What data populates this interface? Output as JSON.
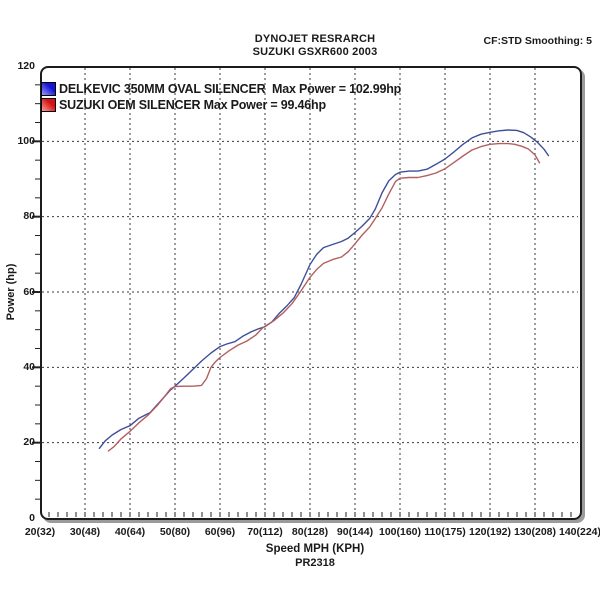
{
  "header": {
    "line1": "DYNOJET RESRARCH",
    "line2": "SUZUKI GSXR600 2003",
    "smoothing": "CF:STD Smoothing: 5"
  },
  "legend": [
    {
      "label": "DELKEVIC 350MM OVAL SILENCER  Max Power = 102.99hp",
      "swatch_color": "#1414d2",
      "swatch_light": "#9a9aff"
    },
    {
      "label": "SUZUKI OEM SILENCER Max Power = 99.46hp",
      "swatch_color": "#d41414",
      "swatch_light": "#ff9a9a"
    }
  ],
  "y_axis": {
    "label": "Power (hp)"
  },
  "x_axis": {
    "label": "Speed MPH (KPH)"
  },
  "footer": {
    "run_id": "PR2318"
  },
  "chart_data": {
    "type": "line",
    "title": "DYNOJET RESRARCH - SUZUKI GSXR600 2003",
    "xlabel": "Speed MPH (KPH)",
    "ylabel": "Power (hp)",
    "xlim": [
      20,
      140
    ],
    "ylim": [
      0,
      120
    ],
    "grid": "dashed",
    "legend_position": "top-left-inside",
    "x_ticks": [
      {
        "mph": 20,
        "label": "20(32)"
      },
      {
        "mph": 30,
        "label": "30(48)"
      },
      {
        "mph": 40,
        "label": "40(64)"
      },
      {
        "mph": 50,
        "label": "50(80)"
      },
      {
        "mph": 60,
        "label": "60(96)"
      },
      {
        "mph": 70,
        "label": "70(112)"
      },
      {
        "mph": 80,
        "label": "80(128)"
      },
      {
        "mph": 90,
        "label": "90(144)"
      },
      {
        "mph": 100,
        "label": "100(160)"
      },
      {
        "mph": 110,
        "label": "110(175)"
      },
      {
        "mph": 120,
        "label": "120(192)"
      },
      {
        "mph": 130,
        "label": "130(208)"
      },
      {
        "mph": 140,
        "label": "140(224)"
      }
    ],
    "y_ticks": [
      0,
      20,
      40,
      60,
      80,
      100,
      120
    ],
    "series": [
      {
        "name": "DELKEVIC 350MM OVAL SILENCER",
        "max_power_hp": 102.99,
        "color": "#3f4e9a",
        "points": [
          [
            33.2,
            18.5
          ],
          [
            34.5,
            20.5
          ],
          [
            36,
            22
          ],
          [
            38,
            23.5
          ],
          [
            40,
            24.5
          ],
          [
            42,
            26.5
          ],
          [
            44.5,
            28
          ],
          [
            46,
            30
          ],
          [
            47.5,
            32
          ],
          [
            49,
            34
          ],
          [
            50,
            35
          ],
          [
            52,
            37.2
          ],
          [
            54,
            39.5
          ],
          [
            56,
            41.8
          ],
          [
            58,
            43.8
          ],
          [
            60,
            45.5
          ],
          [
            61.5,
            46.2
          ],
          [
            63.3,
            46.8
          ],
          [
            65,
            48.2
          ],
          [
            67,
            49.5
          ],
          [
            68.5,
            50.2
          ],
          [
            70,
            50.8
          ],
          [
            71.5,
            52
          ],
          [
            73.3,
            54.5
          ],
          [
            75,
            56.5
          ],
          [
            76.5,
            58.5
          ],
          [
            78,
            62
          ],
          [
            80,
            67.3
          ],
          [
            81.5,
            70
          ],
          [
            83,
            71.8
          ],
          [
            85,
            72.6
          ],
          [
            87,
            73.4
          ],
          [
            88.5,
            74.3
          ],
          [
            90,
            75.8
          ],
          [
            91.5,
            77.4
          ],
          [
            93.3,
            79.6
          ],
          [
            94.5,
            82
          ],
          [
            96,
            86.3
          ],
          [
            97.5,
            89.5
          ],
          [
            99,
            91.2
          ],
          [
            100,
            91.8
          ],
          [
            102,
            92.1
          ],
          [
            104,
            92.1
          ],
          [
            106,
            92.6
          ],
          [
            108,
            93.9
          ],
          [
            110,
            95.3
          ],
          [
            112,
            97.2
          ],
          [
            114,
            99.2
          ],
          [
            116,
            100.9
          ],
          [
            118,
            101.9
          ],
          [
            120,
            102.4
          ],
          [
            122,
            102.8
          ],
          [
            124,
            103
          ],
          [
            126,
            102.9
          ],
          [
            127.5,
            102.3
          ],
          [
            129,
            101.2
          ],
          [
            130.5,
            99.8
          ],
          [
            132,
            97.9
          ],
          [
            133,
            96.2
          ]
        ]
      },
      {
        "name": "SUZUKI OEM SILENCER",
        "max_power_hp": 99.46,
        "color": "#b25f5f",
        "points": [
          [
            35.2,
            17.8
          ],
          [
            36.5,
            19
          ],
          [
            38,
            21
          ],
          [
            40,
            23
          ],
          [
            42,
            25.3
          ],
          [
            44,
            27.3
          ],
          [
            46,
            29.8
          ],
          [
            47.5,
            32
          ],
          [
            49,
            34.3
          ],
          [
            50,
            34.9
          ],
          [
            52,
            35
          ],
          [
            54,
            35
          ],
          [
            55.9,
            35.2
          ],
          [
            57,
            37
          ],
          [
            58,
            40
          ],
          [
            59,
            41.5
          ],
          [
            60,
            42.6
          ],
          [
            62,
            44.4
          ],
          [
            64,
            45.9
          ],
          [
            66,
            47
          ],
          [
            68,
            48.6
          ],
          [
            69.5,
            50.5
          ],
          [
            70.5,
            51.3
          ],
          [
            72,
            52.4
          ],
          [
            74,
            54.4
          ],
          [
            76,
            56.9
          ],
          [
            78,
            60.3
          ],
          [
            80,
            63.9
          ],
          [
            81.5,
            66
          ],
          [
            83,
            67.6
          ],
          [
            85,
            68.6
          ],
          [
            87,
            69.3
          ],
          [
            88.5,
            70.7
          ],
          [
            90,
            72.8
          ],
          [
            91.5,
            75
          ],
          [
            93.3,
            77.3
          ],
          [
            94.5,
            79.5
          ],
          [
            96,
            82.3
          ],
          [
            97.5,
            86
          ],
          [
            99,
            89.3
          ],
          [
            100,
            90.2
          ],
          [
            102,
            90.4
          ],
          [
            104,
            90.4
          ],
          [
            106,
            90.9
          ],
          [
            108,
            91.6
          ],
          [
            110,
            92.7
          ],
          [
            112,
            94.4
          ],
          [
            114,
            96.1
          ],
          [
            116,
            97.7
          ],
          [
            118,
            98.6
          ],
          [
            120,
            99.2
          ],
          [
            122,
            99.4
          ],
          [
            124,
            99.4
          ],
          [
            125.5,
            99.2
          ],
          [
            127,
            98.7
          ],
          [
            128.5,
            98
          ],
          [
            130,
            96.4
          ],
          [
            131,
            94.3
          ]
        ]
      }
    ]
  }
}
